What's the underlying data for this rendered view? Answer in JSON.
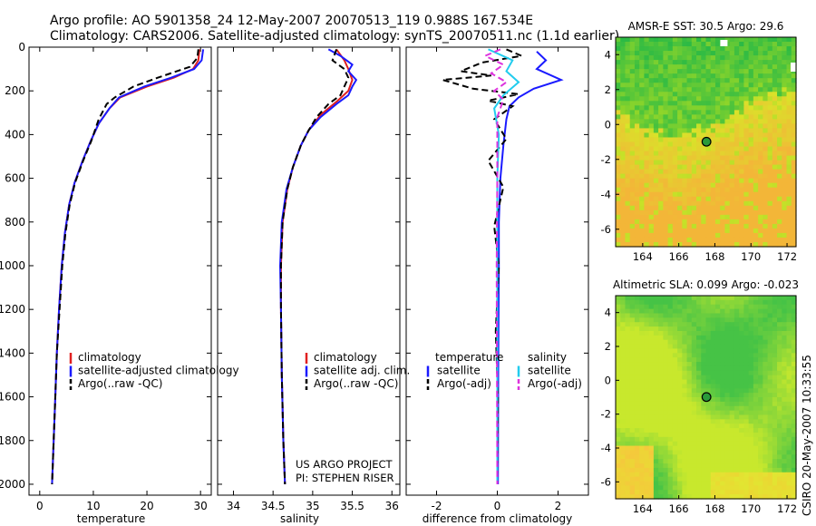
{
  "header": {
    "line1": "Argo profile: AO 5901358_24 12-May-2007 20070513_119 0.988S 167.534E",
    "line2": "Climatology: CARS2006. Satellite-adjusted climatology: synTS_20070511.nc (1.1d earlier)"
  },
  "footer": {
    "credit_line1": "US ARGO PROJECT",
    "credit_line2": "PI: STEPHEN RISER",
    "side_stamp": "CSIRO 20-May-2007 10:33:55"
  },
  "colors": {
    "climatology": "#e02020",
    "satellite": "#1a1aff",
    "argo": "#000000",
    "satellite_diff_salinity": "#22ccee",
    "argo_adj_salinity": "#dd33dd"
  },
  "chart_data": [
    {
      "id": "temperature",
      "type": "line",
      "xlabel": "temperature",
      "ylabel": "",
      "xlim": [
        -2,
        32
      ],
      "ylim": [
        2050,
        0
      ],
      "xticks": [
        0,
        10,
        20,
        30
      ],
      "yticks": [
        0,
        200,
        400,
        600,
        800,
        1000,
        1200,
        1400,
        1600,
        1800,
        2000
      ],
      "legend": [
        "climatology",
        "satellite-adjusted climatology",
        "Argo(..raw -QC)"
      ],
      "series": [
        {
          "name": "climatology",
          "color": "#e02020",
          "dash": "",
          "points": [
            [
              29.8,
              10
            ],
            [
              29.6,
              60
            ],
            [
              28.6,
              100
            ],
            [
              25,
              140
            ],
            [
              20,
              180
            ],
            [
              15,
              230
            ],
            [
              13,
              280
            ],
            [
              11,
              350
            ],
            [
              9.5,
              430
            ],
            [
              8,
              520
            ],
            [
              6.5,
              620
            ],
            [
              5.5,
              720
            ],
            [
              4.7,
              850
            ],
            [
              4.1,
              1000
            ],
            [
              3.6,
              1200
            ],
            [
              3.2,
              1400
            ],
            [
              2.9,
              1600
            ],
            [
              2.6,
              1800
            ],
            [
              2.3,
              2000
            ]
          ]
        },
        {
          "name": "satellite-adjusted climatology",
          "color": "#1a1aff",
          "dash": "",
          "points": [
            [
              30.5,
              10
            ],
            [
              30.2,
              60
            ],
            [
              28.8,
              100
            ],
            [
              24.5,
              140
            ],
            [
              19.5,
              180
            ],
            [
              14.8,
              230
            ],
            [
              13,
              280
            ],
            [
              11,
              350
            ],
            [
              9.5,
              430
            ],
            [
              8,
              520
            ],
            [
              6.5,
              620
            ],
            [
              5.5,
              720
            ],
            [
              4.7,
              850
            ],
            [
              4.1,
              1000
            ],
            [
              3.6,
              1200
            ],
            [
              3.2,
              1400
            ],
            [
              2.9,
              1600
            ],
            [
              2.6,
              1800
            ],
            [
              2.3,
              2000
            ]
          ]
        },
        {
          "name": "Argo(..raw -QC)",
          "color": "#000000",
          "dash": "7,4",
          "points": [
            [
              29.6,
              10
            ],
            [
              29.4,
              50
            ],
            [
              28,
              90
            ],
            [
              22,
              140
            ],
            [
              17.5,
              180
            ],
            [
              14,
              230
            ],
            [
              12.5,
              260
            ],
            [
              11,
              330
            ],
            [
              9.6,
              430
            ],
            [
              8.1,
              520
            ],
            [
              6.6,
              620
            ],
            [
              5.6,
              720
            ],
            [
              4.8,
              850
            ],
            [
              4.2,
              1000
            ],
            [
              3.7,
              1200
            ],
            [
              3.2,
              1400
            ],
            [
              2.9,
              1600
            ],
            [
              2.6,
              1800
            ],
            [
              2.3,
              2000
            ]
          ]
        }
      ]
    },
    {
      "id": "salinity",
      "type": "line",
      "xlabel": "salinity",
      "ylabel": "",
      "xlim": [
        33.8,
        36.1
      ],
      "ylim": [
        2050,
        0
      ],
      "xticks": [
        34,
        34.5,
        35,
        35.5,
        36
      ],
      "yticks": [
        0,
        200,
        400,
        600,
        800,
        1000,
        1200,
        1400,
        1600,
        1800,
        2000
      ],
      "legend": [
        "climatology",
        "satellite adj. clim.",
        "Argo(..raw -QC)"
      ],
      "series": [
        {
          "name": "climatology",
          "color": "#e02020",
          "dash": "",
          "points": [
            [
              35.3,
              10
            ],
            [
              35.4,
              60
            ],
            [
              35.45,
              100
            ],
            [
              35.5,
              150
            ],
            [
              35.45,
              200
            ],
            [
              35.3,
              250
            ],
            [
              35.1,
              310
            ],
            [
              34.95,
              380
            ],
            [
              34.85,
              450
            ],
            [
              34.75,
              550
            ],
            [
              34.68,
              650
            ],
            [
              34.62,
              800
            ],
            [
              34.6,
              1000
            ],
            [
              34.6,
              1200
            ],
            [
              34.61,
              1500
            ],
            [
              34.63,
              1800
            ],
            [
              34.65,
              2000
            ]
          ]
        },
        {
          "name": "satellite adj. clim.",
          "color": "#1a1aff",
          "dash": "",
          "points": [
            [
              35.2,
              10
            ],
            [
              35.35,
              40
            ],
            [
              35.5,
              80
            ],
            [
              35.45,
              110
            ],
            [
              35.55,
              150
            ],
            [
              35.5,
              180
            ],
            [
              35.45,
              220
            ],
            [
              35.3,
              260
            ],
            [
              35.1,
              320
            ],
            [
              34.95,
              380
            ],
            [
              34.85,
              450
            ],
            [
              34.75,
              550
            ],
            [
              34.67,
              650
            ],
            [
              34.61,
              800
            ],
            [
              34.59,
              1000
            ],
            [
              34.6,
              1200
            ],
            [
              34.61,
              1500
            ],
            [
              34.63,
              1800
            ],
            [
              34.65,
              2000
            ]
          ]
        },
        {
          "name": "Argo(..raw -QC)",
          "color": "#000000",
          "dash": "7,4",
          "points": [
            [
              35.3,
              10
            ],
            [
              35.25,
              60
            ],
            [
              35.4,
              100
            ],
            [
              35.45,
              140
            ],
            [
              35.4,
              180
            ],
            [
              35.35,
              220
            ],
            [
              35.2,
              260
            ],
            [
              35.05,
              320
            ],
            [
              34.95,
              380
            ],
            [
              34.85,
              450
            ],
            [
              34.75,
              550
            ],
            [
              34.68,
              650
            ],
            [
              34.62,
              800
            ],
            [
              34.6,
              1000
            ],
            [
              34.6,
              1200
            ],
            [
              34.61,
              1500
            ],
            [
              34.63,
              1800
            ],
            [
              34.65,
              2000
            ]
          ]
        }
      ]
    },
    {
      "id": "difference",
      "type": "line",
      "xlabel": "difference from climatology",
      "ylabel": "",
      "xlim": [
        -3,
        3
      ],
      "ylim": [
        2050,
        0
      ],
      "xticks": [
        -2,
        0,
        2
      ],
      "yticks": [
        0,
        200,
        400,
        600,
        800,
        1000,
        1200,
        1400,
        1600,
        1800,
        2000
      ],
      "legend_groups": [
        {
          "title": "temperature",
          "items": [
            "satellite",
            "Argo(-adj)"
          ]
        },
        {
          "title": "salinity",
          "items": [
            "satellite",
            "Argo(-adj)"
          ]
        }
      ],
      "series": [
        {
          "name": "temperature satellite",
          "color": "#1a1aff",
          "dash": "",
          "points": [
            [
              1.3,
              20
            ],
            [
              1.6,
              60
            ],
            [
              1.3,
              100
            ],
            [
              2.1,
              150
            ],
            [
              1.2,
              190
            ],
            [
              0.7,
              230
            ],
            [
              0.4,
              270
            ],
            [
              0.3,
              330
            ],
            [
              0.2,
              450
            ],
            [
              0.1,
              600
            ],
            [
              0.05,
              800
            ],
            [
              0.05,
              1000
            ],
            [
              0.03,
              1500
            ],
            [
              0.02,
              2000
            ]
          ]
        },
        {
          "name": "temperature Argo(-adj)",
          "color": "#000000",
          "dash": "7,4",
          "points": [
            [
              0.3,
              10
            ],
            [
              0.8,
              40
            ],
            [
              -0.5,
              70
            ],
            [
              -1.2,
              110
            ],
            [
              -0.2,
              130
            ],
            [
              -1.8,
              150
            ],
            [
              -0.8,
              190
            ],
            [
              0.7,
              215
            ],
            [
              -0.3,
              245
            ],
            [
              0.5,
              270
            ],
            [
              -0.1,
              330
            ],
            [
              0.3,
              420
            ],
            [
              -0.3,
              520
            ],
            [
              0.2,
              640
            ],
            [
              -0.1,
              820
            ],
            [
              0.05,
              1000
            ],
            [
              -0.05,
              1300
            ],
            [
              0.02,
              1600
            ],
            [
              0,
              2000
            ]
          ]
        },
        {
          "name": "salinity satellite",
          "color": "#22ccee",
          "dash": "",
          "points": [
            [
              -0.3,
              10
            ],
            [
              0.5,
              60
            ],
            [
              0.3,
              110
            ],
            [
              0.7,
              160
            ],
            [
              0.2,
              220
            ],
            [
              -0.1,
              280
            ],
            [
              0.05,
              400
            ],
            [
              0,
              600
            ],
            [
              0,
              1000
            ],
            [
              0,
              1500
            ],
            [
              0,
              2000
            ]
          ]
        },
        {
          "name": "salinity Argo(-adj)",
          "color": "#dd33dd",
          "dash": "7,4",
          "points": [
            [
              0.1,
              10
            ],
            [
              -0.4,
              40
            ],
            [
              0.2,
              80
            ],
            [
              -0.2,
              120
            ],
            [
              0.3,
              160
            ],
            [
              -0.1,
              200
            ],
            [
              0.2,
              240
            ],
            [
              0,
              320
            ],
            [
              0,
              600
            ],
            [
              -0.02,
              1000
            ],
            [
              0,
              2000
            ]
          ]
        }
      ]
    },
    {
      "id": "sst_map",
      "type": "heatmap",
      "title": "AMSR-E SST: 30.5  Argo: 29.6",
      "xlim": [
        162.5,
        172.5
      ],
      "ylim": [
        -7,
        5
      ],
      "xticks": [
        164,
        166,
        168,
        170,
        172
      ],
      "yticks": [
        4,
        2,
        0,
        -2,
        -4,
        -6
      ],
      "float_position": [
        167.534,
        -0.988
      ],
      "colormap": "north green (cooler relative), south yellow-orange (warmer)"
    },
    {
      "id": "sla_map",
      "type": "heatmap",
      "title": "Altimetric SLA: 0.099  Argo: -0.023",
      "xlim": [
        162.5,
        172.5
      ],
      "ylim": [
        -7,
        5
      ],
      "xticks": [
        164,
        166,
        168,
        170,
        172
      ],
      "yticks": [
        4,
        2,
        0,
        -2,
        -4,
        -6
      ],
      "float_position": [
        167.534,
        -0.988
      ],
      "colormap": "green patches on yellow background"
    }
  ]
}
